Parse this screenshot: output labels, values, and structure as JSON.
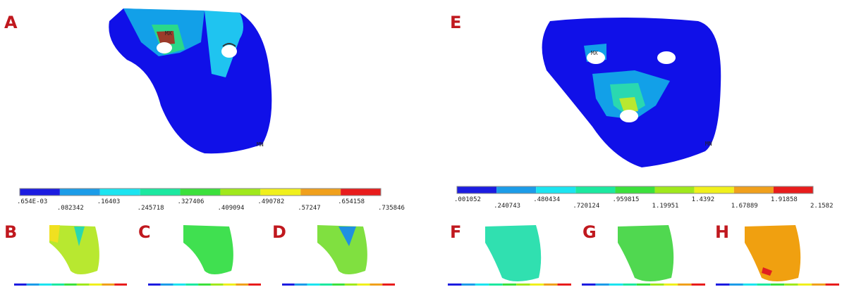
{
  "panels": [
    "A",
    "B",
    "C",
    "D",
    "E",
    "F",
    "G",
    "H"
  ],
  "markers": {
    "a_max": "MX",
    "a_min": "MN",
    "e_max": "MX",
    "e_min": "MN"
  },
  "colorbars": [
    {
      "labels": [
        ".654E-03",
        ".082342",
        ".16403",
        ".245718",
        ".327406",
        ".409094",
        ".490782",
        ".57247",
        ".654158",
        ".735846"
      ]
    },
    {
      "labels": [
        ".001052",
        ".240743",
        ".480434",
        ".720124",
        ".959815",
        "1.19951",
        "1.4392",
        "1.67889",
        "1.91858",
        "2.1582"
      ]
    }
  ]
}
